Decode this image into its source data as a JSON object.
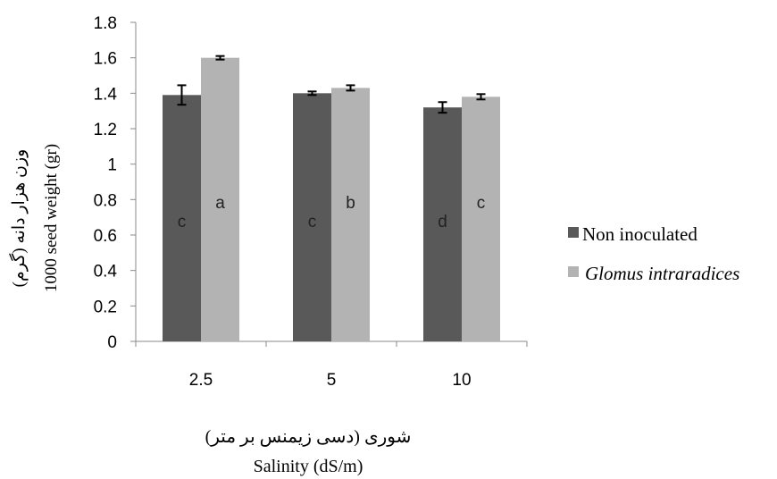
{
  "chart_data": {
    "type": "bar",
    "categories": [
      "2.5",
      "5",
      "10"
    ],
    "series": [
      {
        "name": "Non inoculated",
        "color": "#595959",
        "values": [
          1.39,
          1.4,
          1.32
        ],
        "errors": [
          0.055,
          0.01,
          0.03
        ],
        "letters": [
          "c",
          "c",
          "d"
        ]
      },
      {
        "name": "Glomus intraradices",
        "color": "#b3b3b3",
        "values": [
          1.6,
          1.43,
          1.38
        ],
        "errors": [
          0.01,
          0.015,
          0.015
        ],
        "letters": [
          "a",
          "b",
          "c"
        ]
      }
    ],
    "ylim": [
      0,
      1.8
    ],
    "yticks": [
      "0",
      "0.2",
      "0.4",
      "0.6",
      "0.8",
      "1",
      "1.2",
      "1.4",
      "1.6",
      "1.8"
    ],
    "ylabel_fa": "وزن هزار دانه (گرم)",
    "ylabel": "1000 seed weight (gr)",
    "xlabel_fa": "شوری (دسی زیمنس بر متر)",
    "xlabel": "Salinity (dS/m)",
    "legend_position": "right",
    "grid": false
  }
}
